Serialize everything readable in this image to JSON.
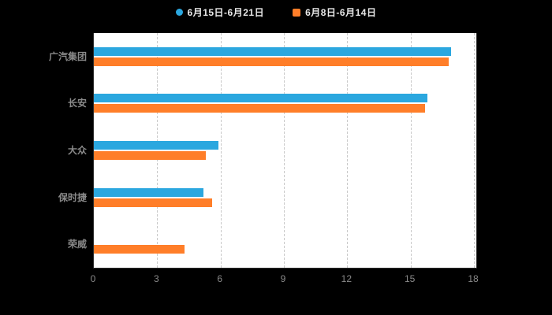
{
  "page": {
    "background": "#000000",
    "plot_background": "#ffffff"
  },
  "chart_data": {
    "type": "bar",
    "orientation": "horizontal",
    "title": "",
    "xlabel": "",
    "ylabel": "",
    "categories": [
      "广汽集团",
      "长安",
      "大众",
      "保时捷",
      "荣威"
    ],
    "series": [
      {
        "name": "6月15日-6月21日",
        "color": "#2BA7DF",
        "marker": "circle",
        "values": [
          16.9,
          15.8,
          5.9,
          5.2,
          null
        ]
      },
      {
        "name": "6月8日-6月14日",
        "color": "#FF7E29",
        "marker": "square",
        "values": [
          16.8,
          15.7,
          5.3,
          5.6,
          4.3
        ]
      }
    ],
    "x_ticks": [
      0,
      3,
      6,
      9,
      12,
      15,
      18
    ],
    "xlim": [
      0,
      18
    ],
    "grid": true,
    "grid_style": "dashed",
    "legend_position": "top",
    "axis_label_color": "#8a8a8a",
    "grid_color": "#c9c9c9"
  }
}
